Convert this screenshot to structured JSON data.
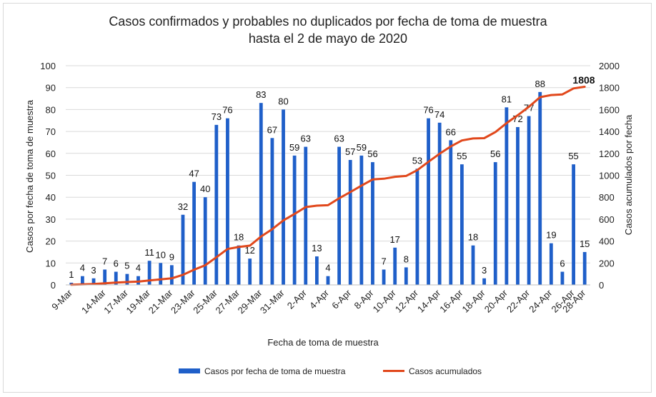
{
  "chart_data": {
    "type": "bar",
    "title_line1": "Casos confirmados y probables no duplicados por fecha de toma de muestra",
    "title_line2": "hasta el 2 de mayo de 2020",
    "xlabel": "Fecha de toma de muestra",
    "ylabel_left": "Casos por fecha de toma de muestra",
    "ylabel_right": "Casos acumulados por fecha",
    "ylim_left": [
      0,
      100
    ],
    "ylim_right": [
      0,
      2000
    ],
    "yticks_left": [
      0,
      10,
      20,
      30,
      40,
      50,
      60,
      70,
      80,
      90,
      100
    ],
    "yticks_right": [
      0,
      200,
      400,
      600,
      800,
      1000,
      1200,
      1400,
      1600,
      1800,
      2000
    ],
    "x_tick_labels": [
      "9-Mar",
      "14-Mar",
      "17-Mar",
      "19-Mar",
      "21-Mar",
      "23-Mar",
      "25-Mar",
      "27-Mar",
      "29-Mar",
      "31-Mar",
      "2-Apr",
      "4-Apr",
      "6-Apr",
      "8-Apr",
      "10-Apr",
      "12-Apr",
      "14-Apr",
      "16-Apr",
      "18-Apr",
      "20-Apr",
      "22-Apr",
      "24-Apr",
      "26-Apr",
      "28-Apr"
    ],
    "grid": true,
    "legend_position": "bottom",
    "series": [
      {
        "name": "Casos por fecha de toma de muestra",
        "type": "bar",
        "color": "#1f5fc9",
        "axis": "left",
        "values": [
          1,
          4,
          3,
          7,
          6,
          5,
          4,
          11,
          10,
          9,
          32,
          47,
          40,
          73,
          76,
          18,
          12,
          83,
          67,
          80,
          59,
          63,
          13,
          4,
          63,
          57,
          59,
          56,
          7,
          17,
          8,
          53,
          76,
          74,
          66,
          55,
          18,
          3,
          56,
          81,
          72,
          77,
          88,
          19,
          6,
          55,
          15
        ]
      },
      {
        "name": "Casos acumulados",
        "type": "line",
        "color": "#e1481c",
        "axis": "right",
        "values": [
          1,
          5,
          8,
          15,
          21,
          26,
          30,
          41,
          51,
          60,
          92,
          139,
          179,
          252,
          328,
          346,
          358,
          441,
          508,
          588,
          647,
          710,
          723,
          727,
          790,
          847,
          906,
          962,
          969,
          986,
          994,
          1047,
          1123,
          1197,
          1263,
          1318,
          1336,
          1339,
          1395,
          1476,
          1548,
          1625,
          1713,
          1732,
          1738,
          1793,
          1808
        ]
      }
    ],
    "final_total_label": "1808"
  }
}
